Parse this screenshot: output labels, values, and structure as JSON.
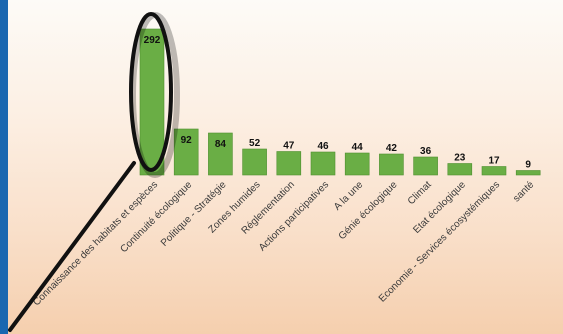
{
  "chart_data": {
    "type": "bar",
    "categories": [
      "Connaissance des habitats et espèces",
      "Continuité écologique",
      "Politique - Stratégie",
      "Zones humides",
      "Réglementation",
      "Actions participatives",
      "A la une",
      "Génie écologique",
      "Climat",
      "Etat écologique",
      "Economie - Services écosystémiques",
      "santé"
    ],
    "values": [
      292,
      92,
      84,
      52,
      47,
      46,
      44,
      42,
      36,
      23,
      17,
      9
    ],
    "value_labels": [
      "292",
      "92",
      "84",
      "52",
      "47",
      "46",
      "44",
      "42",
      "36",
      "23",
      "17",
      "9"
    ],
    "title": "",
    "xlabel": "",
    "ylabel": "",
    "ylim": [
      0,
      310
    ],
    "grid": false,
    "legend": "none",
    "colors": {
      "bar": "#6aae45",
      "bar_edge": "#4f8f30",
      "highlight_ellipse": "#111111",
      "side_band": "#1a67b0"
    },
    "annotation": "ellipse-highlight-with-pointer-line on first bar"
  }
}
